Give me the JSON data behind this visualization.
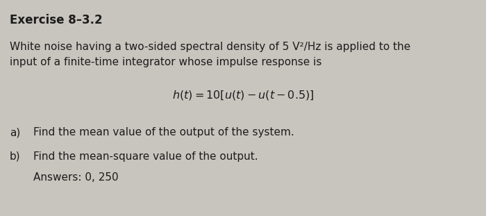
{
  "background_color": "#c8c5be",
  "content_bg": "#dbd8d0",
  "title": "Exercise 8–3.2",
  "title_fontsize": 12,
  "title_fontweight": "bold",
  "body_fontsize": 11,
  "math_fontsize": 11.5,
  "line1": "White noise having a two-sided spectral density of 5 V²/Hz is applied to the",
  "line2": "input of a finite-time integrator whose impulse response is",
  "equation": "$h(t) = 10[u(t) - u(t - 0.5)]$",
  "item_a_label": "a)",
  "item_a_text": "Find the mean value of the output of the system.",
  "item_b_label": "b)",
  "item_b_text": "Find the mean-square value of the output.",
  "answers": "Answers: 0, 250",
  "text_color": "#1c1c1c"
}
